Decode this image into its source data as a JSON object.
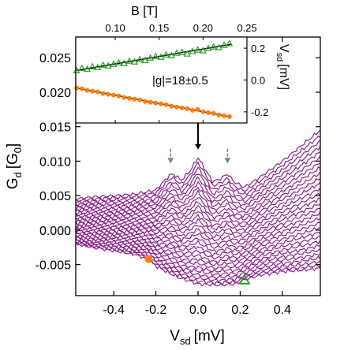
{
  "chart_data": [
    {
      "type": "line",
      "xlabel": "V",
      "xlabel_sub": "sd",
      "xlabel_unit": "[mV]",
      "ylabel": "G",
      "ylabel_sub": "d",
      "ylabel_unit": "[G",
      "ylabel_unit_sub": "0",
      "ylabel_unit_close": "]",
      "xlim": [
        -0.58,
        0.58
      ],
      "ylim": [
        -0.0095,
        0.028
      ],
      "x_ticks": [
        -0.4,
        -0.2,
        0.0,
        0.2,
        0.4
      ],
      "x_tick_labels": [
        "-0.4",
        "-0.2",
        "0.0",
        "0.2",
        "0.4"
      ],
      "y_ticks": [
        -0.005,
        0.0,
        0.005,
        0.01,
        0.015,
        0.02,
        0.025
      ],
      "y_tick_labels": [
        "-0.005",
        "0.000",
        "0.005",
        "0.010",
        "0.015",
        "0.020",
        "0.025"
      ],
      "grid": false,
      "trace_color": "#8b1a8b",
      "trace_count": 30,
      "trace_offsets": [
        -0.0065,
        -0.0059,
        -0.0054,
        -0.0048,
        -0.0043,
        -0.0037,
        -0.0032,
        -0.0027,
        -0.0022,
        -0.0017,
        -0.0012,
        -0.0008,
        -0.0004,
        0.0,
        0.0004,
        0.0008,
        0.0011,
        0.0014,
        0.0017,
        0.002,
        0.0023,
        0.0025,
        0.0027,
        0.0029,
        0.0031,
        0.0033,
        0.0035,
        0.0036,
        0.0037,
        0.0038
      ],
      "top_trace": {
        "x": [
          -0.58,
          -0.5,
          -0.4,
          -0.3,
          -0.2,
          -0.14,
          -0.12,
          -0.08,
          -0.04,
          0.0,
          0.03,
          0.07,
          0.11,
          0.14,
          0.17,
          0.22,
          0.3,
          0.4,
          0.5,
          0.58
        ],
        "y": [
          0.0045,
          0.0048,
          0.005,
          0.0052,
          0.0058,
          0.0078,
          0.0082,
          0.0072,
          0.0085,
          0.0105,
          0.009,
          0.007,
          0.0075,
          0.0082,
          0.007,
          0.0062,
          0.0078,
          0.01,
          0.0125,
          0.0145
        ]
      },
      "bottom_trace": {
        "x": [
          -0.58,
          -0.5,
          -0.4,
          -0.3,
          -0.24,
          -0.2,
          -0.1,
          0.0,
          0.1,
          0.18,
          0.22,
          0.3,
          0.4,
          0.5,
          0.58
        ],
        "y": [
          -0.002,
          -0.0025,
          -0.003,
          -0.0035,
          -0.0042,
          -0.0052,
          -0.0068,
          -0.0078,
          -0.008,
          -0.0078,
          -0.0072,
          -0.0065,
          -0.006,
          -0.0058,
          -0.0055
        ]
      },
      "markers": [
        {
          "shape": "circle",
          "x": -0.235,
          "y": -0.0042,
          "color": "#ff7f0e"
        },
        {
          "shape": "triangle",
          "x": 0.22,
          "y": -0.0072,
          "color": "#2ca02c"
        }
      ],
      "arrows": [
        {
          "x": 0.0,
          "y_from": 0.0155,
          "y_to": 0.0118,
          "color": "#000000"
        },
        {
          "x": -0.13,
          "y_from": 0.0118,
          "y_to": 0.0098,
          "color": "#808080"
        },
        {
          "x": 0.14,
          "y_from": 0.0118,
          "y_to": 0.0098,
          "color": "#808080"
        }
      ]
    },
    {
      "type": "scatter",
      "xlabel": "B [T]",
      "ylabel": "V",
      "ylabel_sub": "sd",
      "ylabel_unit": "[mV]",
      "xlim": [
        0.055,
        0.25
      ],
      "ylim": [
        -0.27,
        0.27
      ],
      "x_ticks": [
        0.1,
        0.15,
        0.2,
        0.25
      ],
      "x_tick_labels": [
        "0.10",
        "0.15",
        "0.20",
        "0.25"
      ],
      "y_ticks": [
        -0.2,
        0.0,
        0.2
      ],
      "y_tick_labels": [
        "-0.2",
        "0.0",
        "0.2"
      ],
      "annotation": "|g|=18±0.5",
      "series": [
        {
          "marker": "triangle",
          "color": "#2ca02c",
          "x": [
            0.056,
            0.062,
            0.068,
            0.074,
            0.08,
            0.086,
            0.092,
            0.098,
            0.104,
            0.11,
            0.116,
            0.122,
            0.128,
            0.134,
            0.14,
            0.146,
            0.152,
            0.158,
            0.164,
            0.17,
            0.176,
            0.182,
            0.188,
            0.194,
            0.2,
            0.206,
            0.212,
            0.218,
            0.224,
            0.23
          ],
          "y": [
            0.06,
            0.075,
            0.07,
            0.085,
            0.08,
            0.095,
            0.09,
            0.1,
            0.11,
            0.105,
            0.12,
            0.115,
            0.13,
            0.125,
            0.14,
            0.15,
            0.145,
            0.16,
            0.155,
            0.17,
            0.175,
            0.165,
            0.18,
            0.19,
            0.185,
            0.2,
            0.21,
            0.205,
            0.22,
            0.23
          ],
          "fit": [
            [
              0.056,
              0.06
            ],
            [
              0.232,
              0.225
            ]
          ]
        },
        {
          "marker": "circle",
          "color": "#ff7f0e",
          "x": [
            0.056,
            0.062,
            0.068,
            0.074,
            0.08,
            0.086,
            0.092,
            0.098,
            0.104,
            0.11,
            0.116,
            0.122,
            0.128,
            0.134,
            0.14,
            0.146,
            0.152,
            0.158,
            0.164,
            0.17,
            0.176,
            0.182,
            0.188,
            0.194,
            0.2,
            0.206,
            0.212,
            0.218,
            0.224,
            0.23
          ],
          "y": [
            -0.05,
            -0.055,
            -0.065,
            -0.07,
            -0.075,
            -0.085,
            -0.09,
            -0.095,
            -0.1,
            -0.11,
            -0.115,
            -0.12,
            -0.125,
            -0.135,
            -0.14,
            -0.145,
            -0.15,
            -0.155,
            -0.165,
            -0.17,
            -0.175,
            -0.18,
            -0.19,
            -0.185,
            -0.2,
            -0.205,
            -0.21,
            -0.22,
            -0.225,
            -0.23
          ],
          "fit": [
            [
              0.056,
              -0.05
            ],
            [
              0.232,
              -0.232
            ]
          ]
        }
      ]
    }
  ]
}
